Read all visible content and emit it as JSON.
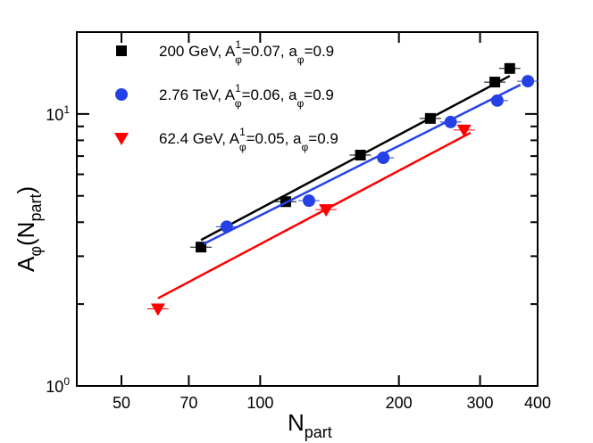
{
  "chart_data": {
    "type": "scatter",
    "xlabel": [
      "N",
      "part"
    ],
    "ylabel": [
      "A",
      "φ",
      "(N",
      "part",
      ")"
    ],
    "xscale": "log",
    "yscale": "log",
    "xlim": [
      40,
      400
    ],
    "ylim": [
      1,
      20
    ],
    "xticks": [
      50,
      70,
      100,
      200,
      300,
      400
    ],
    "yticks": [
      {
        "value": 1,
        "label": [
          "10",
          "0"
        ]
      },
      {
        "value": 10,
        "label": [
          "10",
          "1"
        ]
      }
    ],
    "yminor": [
      2,
      3,
      4,
      5,
      6,
      7,
      8,
      9,
      20
    ],
    "legend": "upper left",
    "series": [
      {
        "name": [
          "200 GeV, A",
          "1",
          "φ",
          "=0.07, a",
          "φ",
          "=0.9"
        ],
        "color": "#000000",
        "marker": "square",
        "x": [
          74.4,
          113.6,
          165,
          234,
          323,
          348
        ],
        "values": [
          3.24,
          4.76,
          7.06,
          9.63,
          13.1,
          14.7
        ],
        "fit": {
          "x": [
            74.4,
            348
          ],
          "values": [
            3.44,
            13.8
          ]
        }
      },
      {
        "name": [
          "2.76 TeV, A",
          "1",
          "φ",
          "=0.06, a",
          "φ",
          "=0.9"
        ],
        "color": "#2541e6",
        "marker": "circle",
        "x": [
          84.6,
          127.6,
          185,
          259,
          327,
          381
        ],
        "values": [
          3.85,
          4.8,
          6.9,
          9.34,
          11.2,
          13.2
        ],
        "fit": {
          "x": [
            75.4,
            367
          ],
          "values": [
            3.33,
            12.8
          ]
        }
      },
      {
        "name": [
          "62.4 GeV, A",
          "1",
          "φ",
          "=0.05, a",
          "φ",
          "=0.9"
        ],
        "color": "#ff0000",
        "marker": "triangle-down",
        "x": [
          60,
          139,
          277
        ],
        "values": [
          1.92,
          4.45,
          8.73
        ],
        "fit": {
          "x": [
            60,
            286
          ],
          "values": [
            2.1,
            8.53
          ]
        }
      }
    ]
  }
}
